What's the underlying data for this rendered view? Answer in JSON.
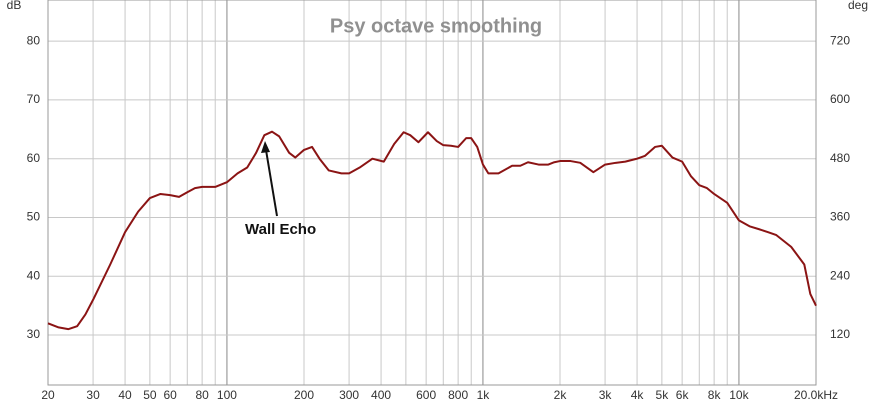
{
  "chart_data": {
    "type": "line",
    "title": "Psy octave smoothing",
    "y_label": "dB",
    "y2_label": "deg",
    "log_x": true,
    "grid": true,
    "xlim": [
      20,
      20000
    ],
    "ylim": [
      21.5,
      87
    ],
    "y2lim": [
      18,
      804
    ],
    "xticks": [
      20,
      30,
      40,
      50,
      60,
      80,
      100,
      200,
      300,
      400,
      600,
      800,
      {
        "value": 1000,
        "label": "1k"
      },
      {
        "value": 2000,
        "label": "2k"
      },
      {
        "value": 3000,
        "label": "3k"
      },
      {
        "value": 4000,
        "label": "4k"
      },
      {
        "value": 5000,
        "label": "5k"
      },
      {
        "value": 6000,
        "label": "6k"
      },
      {
        "value": 8000,
        "label": "8k"
      },
      {
        "value": 10000,
        "label": "10k"
      },
      {
        "value": 20000,
        "label": "20.0kHz"
      }
    ],
    "x_minor_grid": [
      70,
      90,
      500,
      700,
      900,
      7000,
      9000
    ],
    "yticks": [
      30,
      40,
      50,
      60,
      70,
      80
    ],
    "y2ticks": [
      120,
      240,
      360,
      480,
      600,
      720
    ],
    "annotation": "Wall Echo",
    "series": [
      {
        "color": "#8b1414",
        "x": [
          20,
          22,
          24,
          26,
          28,
          30,
          35,
          40,
          45,
          50,
          55,
          60,
          65,
          70,
          75,
          80,
          90,
          100,
          110,
          120,
          130,
          140,
          150,
          160,
          175,
          185,
          200,
          215,
          230,
          250,
          280,
          300,
          330,
          370,
          410,
          450,
          490,
          520,
          560,
          610,
          660,
          700,
          750,
          800,
          860,
          900,
          950,
          1000,
          1050,
          1150,
          1300,
          1400,
          1500,
          1650,
          1800,
          1900,
          2000,
          2200,
          2400,
          2700,
          3000,
          3300,
          3600,
          4000,
          4300,
          4700,
          5000,
          5500,
          6000,
          6500,
          7000,
          7500,
          8000,
          9000,
          10000,
          11000,
          12000,
          13000,
          14000,
          16000,
          18000,
          19000,
          20000
        ],
        "values": [
          32,
          31.3,
          31,
          31.5,
          33.5,
          36,
          42,
          47.5,
          51,
          53.3,
          54,
          53.8,
          53.5,
          54.3,
          55,
          55.2,
          55.2,
          56,
          57.5,
          58.5,
          61,
          64,
          64.6,
          63.8,
          61,
          60.2,
          61.5,
          62,
          60,
          58,
          57.5,
          57.5,
          58.5,
          60,
          59.5,
          62.5,
          64.5,
          64,
          62.8,
          64.5,
          63,
          62.3,
          62.2,
          62,
          63.5,
          63.5,
          62,
          59,
          57.5,
          57.5,
          58.8,
          58.8,
          59.4,
          59,
          59,
          59.4,
          59.6,
          59.6,
          59.3,
          57.7,
          59,
          59.3,
          59.5,
          60,
          60.5,
          62,
          62.2,
          60.2,
          59.5,
          57,
          55.5,
          55,
          54,
          52.5,
          49.5,
          48.5,
          48,
          47.5,
          47,
          45,
          42,
          37,
          35
        ]
      }
    ]
  }
}
